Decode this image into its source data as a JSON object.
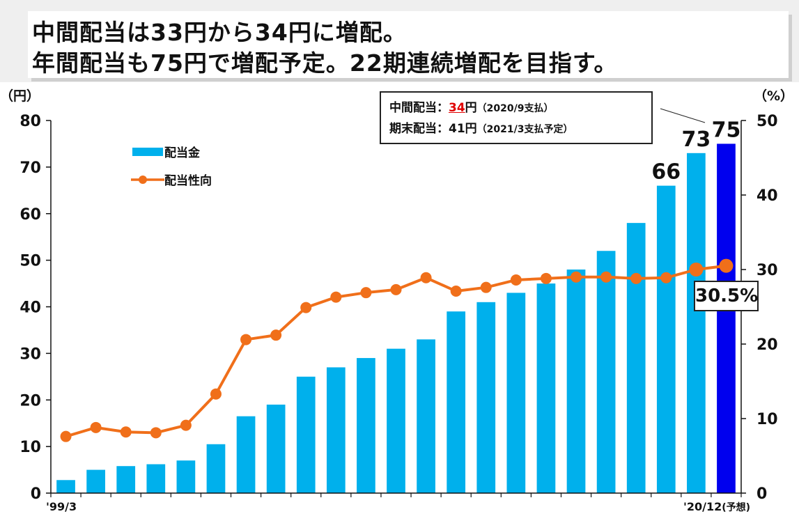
{
  "header": {
    "title_line1": "中間配当は33円から34円に増配。",
    "title_line2": "年間配当も75円で増配予定。22期連続増配を目指す。"
  },
  "info_box": {
    "interim_label": "中間配当：",
    "interim_value": "34",
    "interim_unit": "円",
    "interim_note": "（2020/9支払）",
    "final_label": "期末配当：",
    "final_value": "41",
    "final_unit": "円",
    "final_note": "（2021/3支払予定）"
  },
  "ratio_callout": "30.5%",
  "colors": {
    "bar": "#00b0ec",
    "bar_highlight": "#0000ee",
    "line": "#f06f1a",
    "axis": "#111111"
  },
  "chart_data": {
    "type": "bar",
    "title": "",
    "xlabel": "",
    "ylabel_left": "（円）",
    "ylabel_right": "（%）",
    "ylim_left": [
      0,
      80
    ],
    "yticks_left": [
      0,
      10,
      20,
      30,
      40,
      50,
      60,
      70,
      80
    ],
    "ylim_right": [
      0,
      50
    ],
    "yticks_right": [
      0,
      10,
      20,
      30,
      40,
      50
    ],
    "x_start_label": "'99/3",
    "x_end_label": "'20/12",
    "x_end_suffix": "(予想)",
    "grid": false,
    "legend_position": "top-left",
    "series": [
      {
        "name": "配当金",
        "kind": "bar",
        "axis": "left",
        "values": [
          2.8,
          5,
          5.8,
          6.2,
          7,
          10.5,
          16.5,
          19,
          25,
          27,
          29,
          31,
          33,
          39,
          41,
          43,
          45,
          48,
          52,
          58,
          66,
          73,
          75
        ]
      },
      {
        "name": "配当性向",
        "kind": "line",
        "axis": "right",
        "values": [
          7.6,
          8.8,
          8.2,
          8.1,
          9.1,
          13.3,
          20.6,
          21.2,
          24.9,
          26.3,
          26.9,
          27.3,
          28.9,
          27.1,
          27.6,
          28.6,
          28.8,
          29.0,
          29.0,
          28.8,
          28.9,
          30.0,
          30.5
        ]
      }
    ],
    "data_labels": [
      {
        "index": 20,
        "text": "66"
      },
      {
        "index": 21,
        "text": "73"
      },
      {
        "index": 22,
        "text": "75"
      }
    ],
    "highlight_index": 22
  }
}
